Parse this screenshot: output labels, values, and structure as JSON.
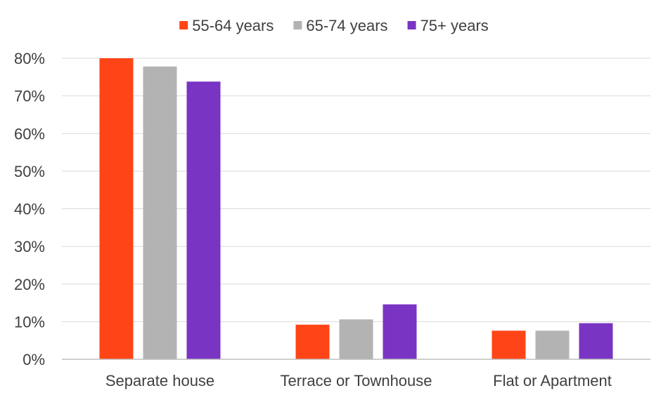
{
  "chart_data": {
    "type": "bar",
    "categories": [
      "Separate house",
      "Terrace or Townhouse",
      "Flat or Apartment"
    ],
    "series": [
      {
        "name": "55-64 years",
        "color": "#ff4517",
        "values": [
          80,
          9.2,
          7.6
        ]
      },
      {
        "name": "65-74 years",
        "color": "#b3b3b3",
        "values": [
          77.8,
          10.6,
          7.6
        ]
      },
      {
        "name": "75+ years",
        "color": "#7a34c4",
        "values": [
          73.8,
          14.6,
          9.6
        ]
      }
    ],
    "ylim": [
      0,
      80
    ],
    "yticks": [
      "0%",
      "10%",
      "20%",
      "30%",
      "40%",
      "50%",
      "60%",
      "70%",
      "80%"
    ],
    "ytick_values": [
      0,
      10,
      20,
      30,
      40,
      50,
      60,
      70,
      80
    ],
    "grid": true,
    "legend_position": "top-center"
  }
}
